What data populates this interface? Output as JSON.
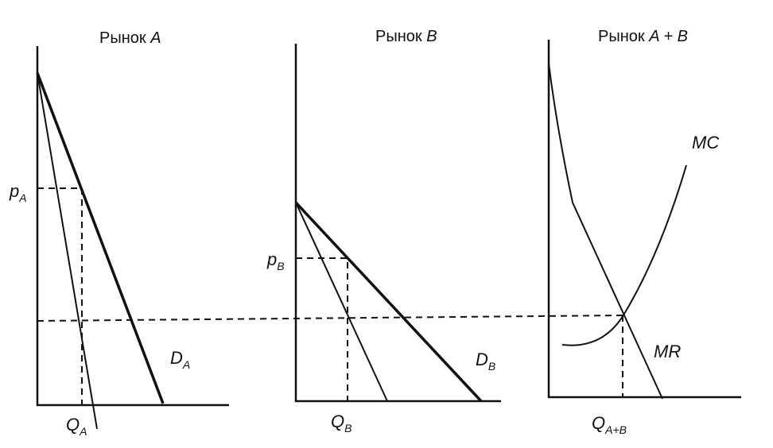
{
  "panels": [
    {
      "title": {
        "word": "Рынок",
        "letter": "A"
      },
      "labels": [
        {
          "main": "p",
          "sub": "A"
        },
        {
          "main": "Q",
          "sub": "A"
        },
        {
          "main": "D",
          "sub": "A"
        }
      ]
    },
    {
      "title": {
        "word": "Рынок",
        "letter": "B"
      },
      "labels": [
        {
          "main": "p",
          "sub": "B"
        },
        {
          "main": "Q",
          "sub": "B"
        },
        {
          "main": "D",
          "sub": "B"
        }
      ]
    },
    {
      "title": {
        "word": "Рынок",
        "letter": "A + B"
      },
      "labels": [
        {
          "main": "MC"
        },
        {
          "main": "MR"
        },
        {
          "main": "Q",
          "sub": "A+B"
        }
      ]
    }
  ]
}
